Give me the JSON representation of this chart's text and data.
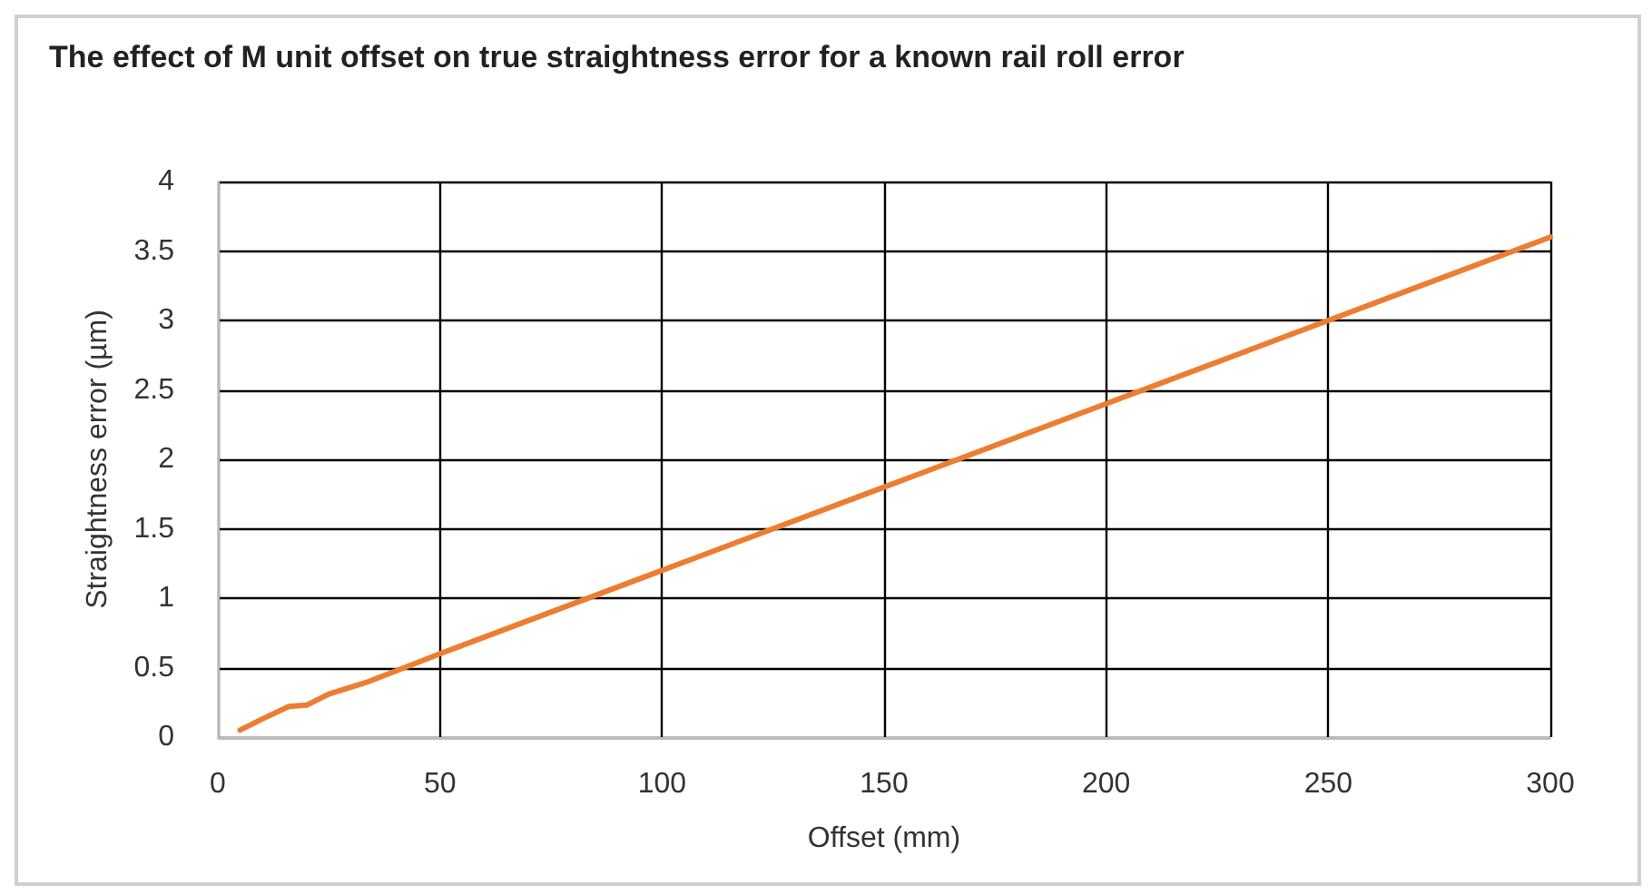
{
  "chart_data": {
    "type": "line",
    "title": "The effect of M unit offset on true straightness error for a known rail roll error",
    "xlabel": "Offset (mm)",
    "ylabel": "Straightness error (µm)",
    "x": [
      5,
      10,
      16,
      20,
      25,
      34,
      50,
      100,
      150,
      200,
      250,
      300
    ],
    "series": [
      {
        "color": "#ed7d31",
        "values": [
          0.05,
          0.13,
          0.22,
          0.23,
          0.31,
          0.4,
          0.6,
          1.2,
          1.8,
          2.4,
          3.0,
          3.6
        ]
      }
    ],
    "xlim": [
      0,
      300
    ],
    "xticks": [
      0,
      50,
      100,
      150,
      200,
      250,
      300
    ],
    "ylim": [
      0,
      4
    ],
    "yticks": [
      0,
      0.5,
      1,
      1.5,
      2,
      2.5,
      3,
      3.5,
      4
    ],
    "grid": true,
    "marker": "none",
    "line_style": "solid"
  }
}
